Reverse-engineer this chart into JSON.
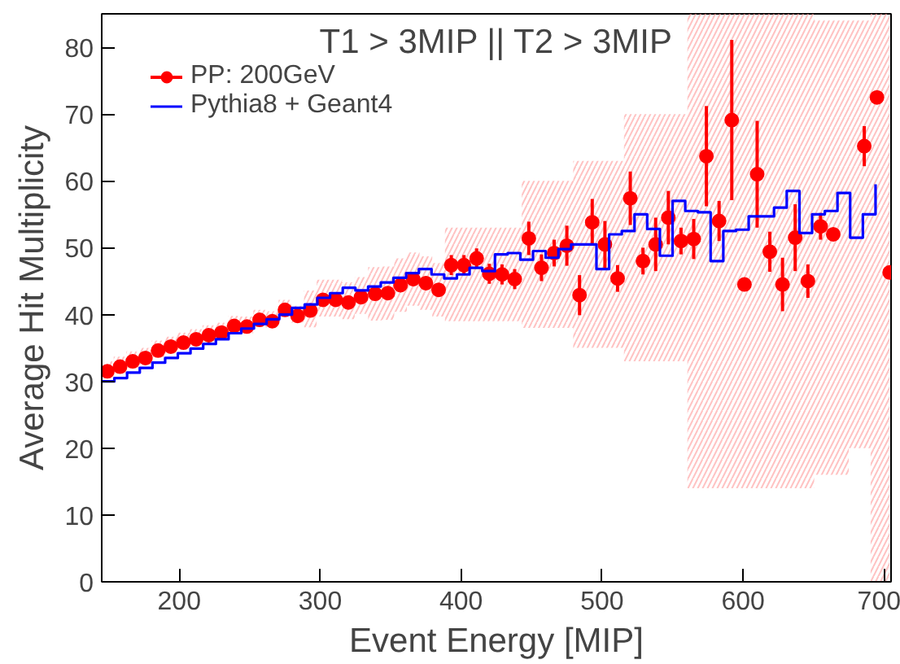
{
  "chart_data": {
    "type": "scatter",
    "title": "T1 > 3MIP || T2 > 3MIP",
    "xlabel": "Event Energy [MIP]",
    "ylabel": "Average Hit Multiplicity",
    "xlim": [
      145,
      705
    ],
    "xticks": [
      200,
      300,
      400,
      500,
      600,
      700
    ],
    "ylim": [
      0,
      85
    ],
    "yticks": [
      0,
      10,
      20,
      30,
      40,
      50,
      60,
      70,
      80
    ],
    "legend": "top left",
    "grid": false,
    "series": [
      {
        "name": "PP: 200GeV",
        "color": "#ff0000",
        "marker": "circle",
        "x": [
          149,
          158,
          167,
          176,
          185,
          194,
          203,
          212,
          221,
          230,
          239,
          248,
          257,
          266,
          275,
          284,
          293,
          302,
          311,
          320,
          329,
          339,
          348,
          357,
          366,
          375,
          384,
          393,
          402,
          411,
          420,
          429,
          438,
          448,
          457,
          466,
          475,
          484,
          493,
          502,
          511,
          520,
          529,
          538,
          547,
          556,
          565,
          574,
          583,
          592,
          601,
          610,
          619,
          628,
          637,
          646,
          655,
          664,
          686,
          695,
          704
        ],
        "values": [
          31.5,
          32.2,
          33.0,
          33.5,
          34.6,
          35.2,
          35.8,
          36.3,
          36.9,
          37.3,
          38.3,
          38.2,
          39.2,
          39.0,
          40.7,
          39.8,
          40.6,
          42.2,
          42.2,
          41.8,
          42.6,
          43.1,
          43.2,
          44.4,
          45.3,
          44.7,
          43.7,
          47.4,
          47.4,
          48.4,
          46.1,
          46.0,
          45.3,
          51.4,
          47.0,
          49.2,
          50.3,
          42.9,
          53.8,
          50.5,
          45.4,
          57.4,
          48.0,
          50.5,
          54.5,
          51.0,
          51.3,
          63.7,
          54.0,
          69.1,
          44.5,
          61.0,
          49.4,
          44.5,
          51.5,
          45.0,
          53.2,
          52.0,
          65.2,
          72.5,
          46.3
        ],
        "errors": [
          0.3,
          0.3,
          0.3,
          0.3,
          0.3,
          0.3,
          0.3,
          0.3,
          0.3,
          0.3,
          0.4,
          0.4,
          0.4,
          0.4,
          0.5,
          0.5,
          0.5,
          0.5,
          0.5,
          0.5,
          0.6,
          0.6,
          0.7,
          0.8,
          1,
          1,
          1,
          1.5,
          1.5,
          1.5,
          1.5,
          1.5,
          1.5,
          2.5,
          2,
          2,
          3,
          3,
          3.5,
          3.5,
          2,
          4,
          2,
          4,
          4,
          2,
          3,
          7.5,
          3,
          12,
          1,
          8,
          3,
          4,
          5,
          2.5,
          2,
          0.5,
          3,
          0.5,
          0.5
        ],
        "lower": [
          30.5,
          31.2,
          32.0,
          32.5,
          33.6,
          34.2,
          34.8,
          35.3,
          35.9,
          36.3,
          37.3,
          37.2,
          38.2,
          38.0,
          39.7,
          38.8,
          38.1,
          39.7,
          39.7,
          39.3,
          40.1,
          39.1,
          39.2,
          40.4,
          41.3,
          40.7,
          39.7,
          39,
          39,
          39,
          39,
          39,
          39,
          38,
          38,
          38,
          38,
          35,
          35,
          35,
          35,
          33,
          33,
          33,
          33,
          33,
          14,
          14,
          14,
          14,
          14,
          14,
          14,
          14,
          14,
          14,
          16,
          16,
          20,
          0,
          0
        ],
        "upper": [
          33.0,
          33.7,
          34.5,
          35.0,
          36.1,
          36.7,
          37.3,
          37.8,
          38.4,
          38.8,
          39.8,
          39.7,
          40.7,
          40.5,
          42.2,
          41.3,
          43.6,
          45.2,
          45.2,
          44.8,
          45.6,
          47.1,
          47.2,
          48.4,
          49.3,
          48.7,
          47.7,
          53,
          53,
          53,
          53,
          53,
          53,
          60,
          60,
          60,
          60,
          63,
          63,
          63,
          63,
          70,
          70,
          70,
          70,
          70,
          85,
          85,
          85,
          85,
          85,
          85,
          85,
          85,
          85,
          85,
          84,
          84,
          84,
          85,
          85
        ]
      },
      {
        "name": "Pythia8 + Geant4",
        "color": "#0000ff",
        "type": "step",
        "marker": "none",
        "x": [
          145,
          154,
          163,
          172,
          181,
          190,
          199,
          208,
          217,
          226,
          235,
          244,
          253,
          262,
          271,
          280,
          289,
          298,
          307,
          316,
          325,
          334,
          343,
          352,
          361,
          370,
          379,
          388,
          397,
          406,
          415,
          424,
          433,
          442,
          451,
          460,
          469,
          478,
          487,
          496,
          505,
          514,
          523,
          532,
          541,
          550,
          559,
          568,
          577,
          586,
          595,
          604,
          613,
          622,
          631,
          640,
          649,
          658,
          667,
          676,
          685,
          694
        ],
        "values": [
          30.0,
          30.5,
          31.3,
          32.0,
          32.8,
          33.5,
          34.2,
          34.9,
          35.6,
          36.3,
          37.2,
          37.9,
          38.6,
          39.3,
          40.0,
          41.0,
          41.5,
          42.5,
          43.2,
          44.0,
          43.6,
          44.2,
          44.8,
          45.5,
          46.2,
          46.8,
          46.0,
          45.4,
          46.0,
          47.0,
          46.5,
          49.0,
          49.2,
          48.2,
          49.5,
          48.5,
          49.8,
          50.5,
          50.5,
          46.8,
          52.0,
          52.5,
          55.0,
          52.8,
          48.8,
          57.0,
          55.5,
          55.3,
          48.0,
          52.5,
          52.7,
          54.7,
          54.7,
          56.0,
          58.5,
          52.2,
          55.0,
          55.5,
          58.2,
          51.5,
          55.0,
          59.5
        ]
      }
    ]
  }
}
